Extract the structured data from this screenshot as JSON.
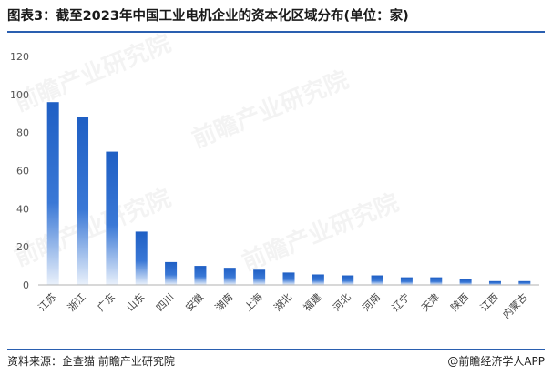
{
  "header": {
    "title": "图表3：截至2023年中国工业电机企业的资本化区域分布(单位：家)"
  },
  "watermarks": [
    "前瞻产业研究院",
    "前瞻产业研究院",
    "前瞻产业研究院",
    "前瞻产业研究院"
  ],
  "footer": {
    "source": "资料来源：企查猫 前瞻产业研究院",
    "credit": "@前瞻经济学人APP"
  },
  "colors": {
    "bar_top": "#1f5fc4",
    "bar_bottom": "#eaf1fb",
    "axis": "#b0b0b0",
    "title_rule": "#2a5fb0"
  },
  "chart_data": {
    "type": "bar",
    "title": "",
    "xlabel": "",
    "ylabel": "",
    "ylim": [
      0,
      120
    ],
    "yticks": [
      0,
      20,
      40,
      60,
      80,
      100,
      120
    ],
    "grid": false,
    "categories": [
      "江苏",
      "浙江",
      "广东",
      "山东",
      "四川",
      "安徽",
      "湖南",
      "上海",
      "湖北",
      "福建",
      "河北",
      "河南",
      "辽宁",
      "天津",
      "陕西",
      "江西",
      "内蒙古"
    ],
    "values": [
      96,
      88,
      70,
      28,
      12,
      10,
      9,
      8,
      6.5,
      5.5,
      5,
      5,
      4,
      4,
      3,
      2,
      2
    ]
  }
}
